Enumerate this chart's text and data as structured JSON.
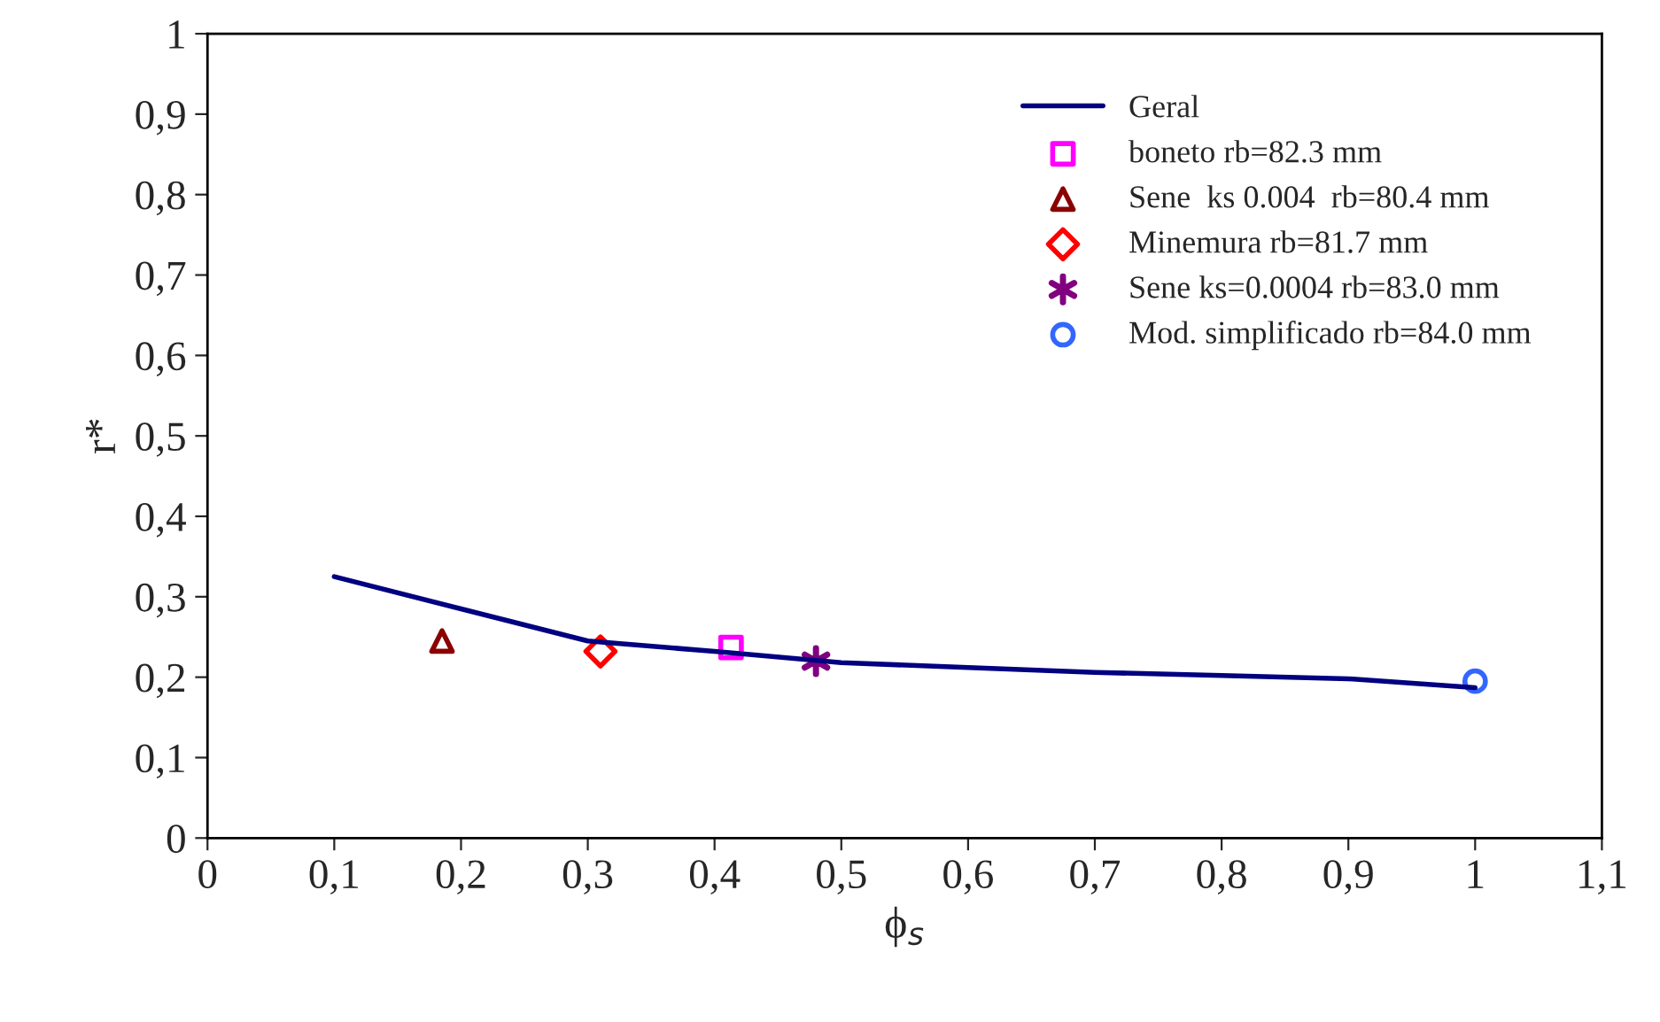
{
  "chart_data": {
    "type": "line",
    "xlabel": "ϕ$_{s}$",
    "ylabel": "r*",
    "xlim": [
      0,
      1.1
    ],
    "ylim": [
      0,
      1
    ],
    "xticks": [
      0,
      {
        "value": 0.1,
        "label": "0,1"
      },
      {
        "value": 0.2,
        "label": "0,2"
      },
      {
        "value": 0.3,
        "label": "0,3"
      },
      {
        "value": 0.4,
        "label": "0,4"
      },
      {
        "value": 0.5,
        "label": "0,5"
      },
      {
        "value": 0.6,
        "label": "0,6"
      },
      {
        "value": 0.7,
        "label": "0,7"
      },
      {
        "value": 0.8,
        "label": "0,8"
      },
      {
        "value": 0.9,
        "label": "0,9"
      },
      1,
      {
        "value": 1.1,
        "label": "1,1"
      }
    ],
    "yticks": [
      0,
      {
        "value": 0.1,
        "label": "0,1"
      },
      {
        "value": 0.2,
        "label": "0,2"
      },
      {
        "value": 0.3,
        "label": "0,3"
      },
      {
        "value": 0.4,
        "label": "0,4"
      },
      {
        "value": 0.5,
        "label": "0,5"
      },
      {
        "value": 0.6,
        "label": "0,6"
      },
      {
        "value": 0.7,
        "label": "0,7"
      },
      {
        "value": 0.8,
        "label": "0,8"
      },
      {
        "value": 0.9,
        "label": "0,9"
      },
      1
    ],
    "grid": false,
    "legend": "top right",
    "series": [
      {
        "name": "Geral",
        "color": "#000080",
        "line_style": "solid",
        "marker": "none",
        "x": [
          0.1,
          0.2,
          0.3,
          0.4,
          0.5,
          0.6,
          0.7,
          0.8,
          0.9,
          1.0
        ],
        "values": [
          0.325,
          0.285,
          0.245,
          0.232,
          0.218,
          0.212,
          0.206,
          0.202,
          0.198,
          0.187
        ]
      },
      {
        "name": "boneto rb=82.3 mm",
        "type": "scatter",
        "color": "#ff00ff",
        "marker": "square",
        "x": [
          0.413
        ],
        "values": [
          0.237
        ]
      },
      {
        "name": "Sene  ks 0.004  rb=80.4 mm",
        "type": "scatter",
        "color": "#8b0000",
        "marker": "triangle",
        "x": [
          0.185
        ],
        "values": [
          0.245
        ]
      },
      {
        "name": "Minemura rb=81.7 mm",
        "type": "scatter",
        "color": "#ff0000",
        "marker": "diamond",
        "x": [
          0.31
        ],
        "values": [
          0.232
        ]
      },
      {
        "name": "Sene ks=0.0004 rb=83.0 mm",
        "type": "scatter",
        "color": "#800080",
        "marker": "cross",
        "x": [
          0.48
        ],
        "values": [
          0.22
        ]
      },
      {
        "name": "Mod. simplificado rb=84.0 mm",
        "type": "scatter",
        "color": "#3366ff",
        "marker": "circle",
        "x": [
          1.0
        ],
        "values": [
          0.195
        ]
      }
    ]
  }
}
